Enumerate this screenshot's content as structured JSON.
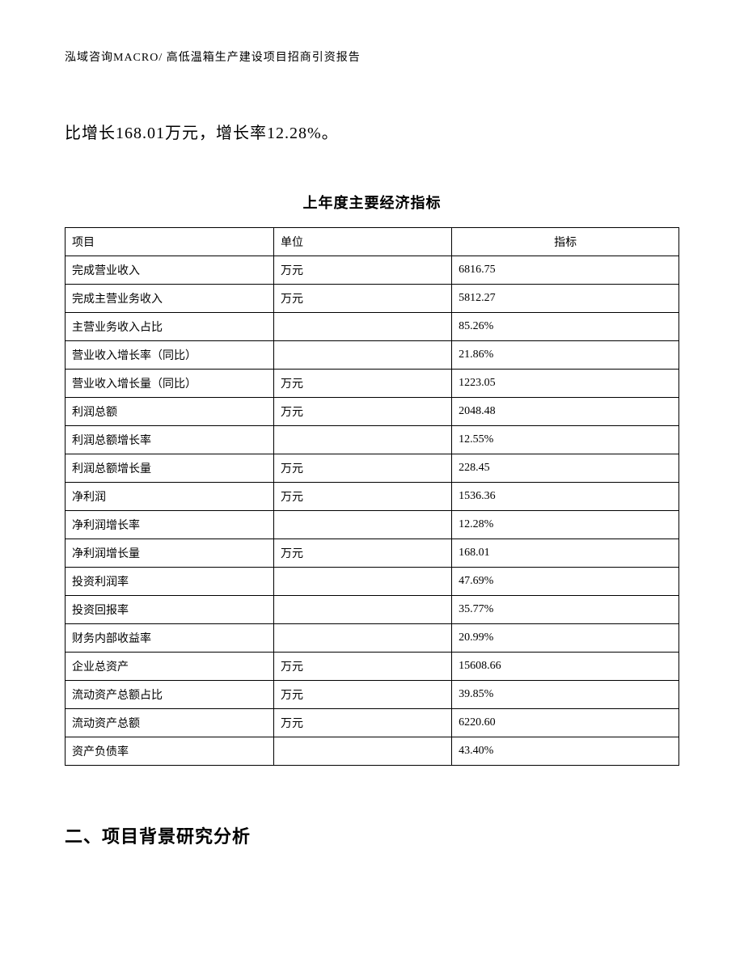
{
  "header": {
    "text": "泓域咨询MACRO/ 高低温箱生产建设项目招商引资报告"
  },
  "bodyText": "比增长168.01万元，增长率12.28%。",
  "table": {
    "title": "上年度主要经济指标",
    "columns": [
      "项目",
      "单位",
      "指标"
    ],
    "rows": [
      [
        "完成营业收入",
        "万元",
        "6816.75"
      ],
      [
        "完成主营业务收入",
        "万元",
        "5812.27"
      ],
      [
        "主营业务收入占比",
        "",
        "85.26%"
      ],
      [
        "营业收入增长率（同比）",
        "",
        "21.86%"
      ],
      [
        "营业收入增长量（同比）",
        "万元",
        "1223.05"
      ],
      [
        "利润总额",
        "万元",
        "2048.48"
      ],
      [
        "利润总额增长率",
        "",
        "12.55%"
      ],
      [
        "利润总额增长量",
        "万元",
        "228.45"
      ],
      [
        "净利润",
        "万元",
        "1536.36"
      ],
      [
        "净利润增长率",
        "",
        "12.28%"
      ],
      [
        "净利润增长量",
        "万元",
        "168.01"
      ],
      [
        "投资利润率",
        "",
        "47.69%"
      ],
      [
        "投资回报率",
        "",
        "35.77%"
      ],
      [
        "财务内部收益率",
        "",
        "20.99%"
      ],
      [
        "企业总资产",
        "万元",
        "15608.66"
      ],
      [
        "流动资产总额占比",
        "万元",
        "39.85%"
      ],
      [
        "流动资产总额",
        "万元",
        "6220.60"
      ],
      [
        "资产负债率",
        "",
        "43.40%"
      ]
    ]
  },
  "sectionHeading": "二、项目背景研究分析"
}
